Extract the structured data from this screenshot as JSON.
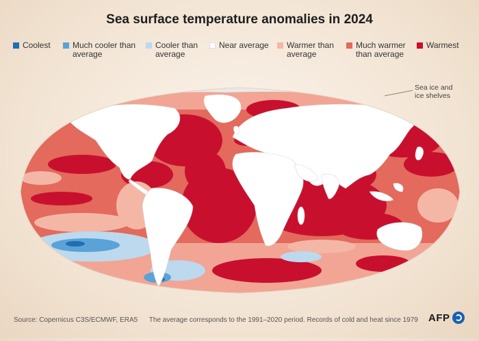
{
  "title": "Sea surface temperature anomalies in 2024",
  "legend": [
    {
      "label": "Coolest",
      "color": "#1f6fb3"
    },
    {
      "label": "Much cooler than\naverage",
      "color": "#5aa2d8"
    },
    {
      "label": "Cooler than\naverage",
      "color": "#bcd9ee"
    },
    {
      "label": "Near average",
      "color": "#ffffff"
    },
    {
      "label": "Warmer than\naverage",
      "color": "#f4b7a6"
    },
    {
      "label": "Much warmer\nthan average",
      "color": "#e36a5c"
    },
    {
      "label": "Warmest",
      "color": "#c8102e"
    }
  ],
  "annotation": "Sea ice and\nice shelves",
  "footer": {
    "source": "Source: Copernicus C3S/ECMWF, ERA5",
    "note": "The average corresponds to the 1991–2020 period. Records of cold and heat since 1979"
  },
  "brand": "AFP",
  "colors": {
    "ocean_base": "#e36a5c",
    "warmest": "#c8102e",
    "land": "#ffffff",
    "sea_ice": "#e9e9e9"
  }
}
